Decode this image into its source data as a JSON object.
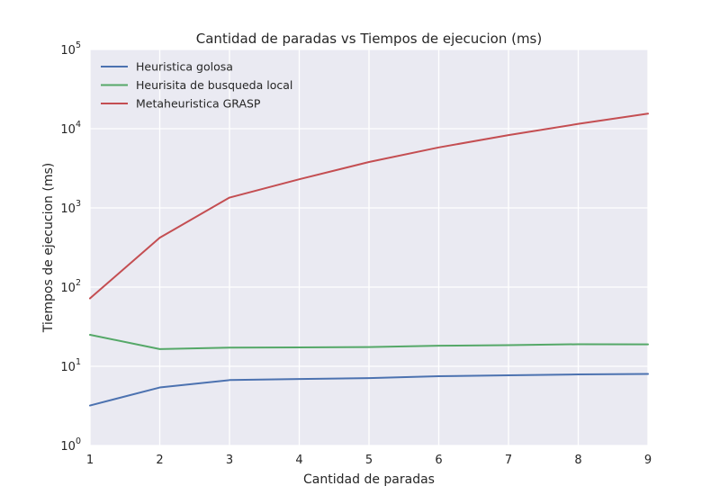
{
  "chart_data": {
    "type": "line",
    "title": "Cantidad de paradas vs Tiempos de ejecucion (ms)",
    "xlabel": "Cantidad de paradas",
    "ylabel": "Tiempos de ejecucion (ms)",
    "x": [
      1,
      2,
      3,
      4,
      5,
      6,
      7,
      8,
      9
    ],
    "xlim": [
      1,
      9
    ],
    "ylim": [
      1,
      100000
    ],
    "yscale": "log",
    "x_ticks": [
      "1",
      "2",
      "3",
      "4",
      "5",
      "6",
      "7",
      "8",
      "9"
    ],
    "y_ticks": [
      {
        "base": "10",
        "exp": "0",
        "value": 1
      },
      {
        "base": "10",
        "exp": "1",
        "value": 10
      },
      {
        "base": "10",
        "exp": "2",
        "value": 100
      },
      {
        "base": "10",
        "exp": "3",
        "value": 1000
      },
      {
        "base": "10",
        "exp": "4",
        "value": 10000
      },
      {
        "base": "10",
        "exp": "5",
        "value": 100000
      }
    ],
    "grid": true,
    "legend_position": "top-left",
    "series": [
      {
        "name": "Heuristica golosa",
        "color": "#4c72b0",
        "values": [
          3.2,
          5.4,
          6.7,
          6.9,
          7.1,
          7.5,
          7.7,
          7.9,
          8.0
        ]
      },
      {
        "name": "Heurisita de busqueda local",
        "color": "#55a868",
        "values": [
          25,
          16.5,
          17.2,
          17.3,
          17.5,
          18.2,
          18.5,
          19.0,
          18.9
        ]
      },
      {
        "name": "Metaheuristica GRASP",
        "color": "#c44e52",
        "values": [
          72,
          420,
          1350,
          2300,
          3800,
          5800,
          8300,
          11500,
          15500
        ]
      }
    ]
  }
}
